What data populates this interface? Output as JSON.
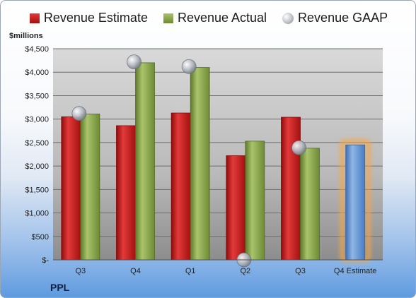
{
  "legend": {
    "estimate_label": "Revenue Estimate",
    "actual_label": "Revenue Actual",
    "gaap_label": "Revenue GAAP"
  },
  "units_label": "$millions",
  "company": "PPL",
  "colors": {
    "estimate": "#c9191c",
    "actual": "#8aa64a",
    "gaap": "#b8bcc4",
    "estimate_forecast": "#6c9bd6",
    "highlight": "#f5a646"
  },
  "chart_data": {
    "type": "bar",
    "categories": [
      "Q3",
      "Q4",
      "Q1",
      "Q2",
      "Q3",
      "Q4 Estimate"
    ],
    "series": [
      {
        "name": "Revenue Estimate",
        "values": [
          3050,
          2860,
          3130,
          2220,
          3040,
          2450
        ]
      },
      {
        "name": "Revenue Actual",
        "values": [
          3110,
          4200,
          4100,
          2530,
          2380,
          null
        ]
      },
      {
        "name": "Revenue GAAP",
        "values": [
          3120,
          4220,
          4120,
          0,
          2390,
          null
        ]
      }
    ],
    "ylim": [
      0,
      4500
    ],
    "ytick_values": [
      0,
      500,
      1000,
      1500,
      2000,
      2500,
      3000,
      3500,
      4000,
      4500
    ],
    "ytick_labels": [
      "$-",
      "$500",
      "$1,000",
      "$1,500",
      "$2,000",
      "$2,500",
      "$3,000",
      "$3,500",
      "$4,000",
      "$4,500"
    ],
    "grid": true,
    "legend_position": "top"
  }
}
